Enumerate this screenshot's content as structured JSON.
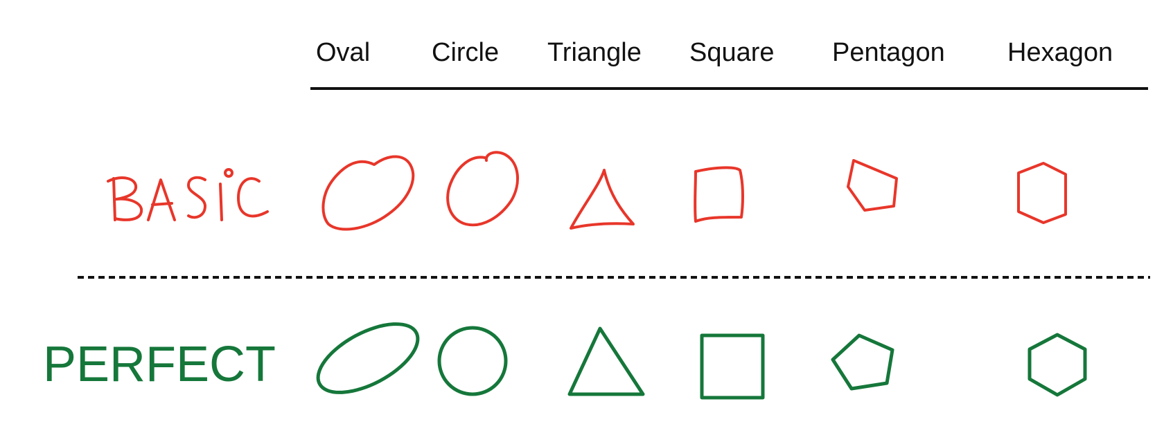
{
  "header": {
    "columns": [
      "Oval",
      "Circle",
      "Triangle",
      "Square",
      "Pentagon",
      "Hexagon"
    ]
  },
  "rows": {
    "basic": {
      "label": "BASIC",
      "color": "#e8362a",
      "style": "hand-drawn"
    },
    "perfect": {
      "label": "PERFECT",
      "color": "#15773a",
      "style": "geometric"
    }
  },
  "colors": {
    "header_line": "#111111",
    "divider": "#111111"
  }
}
